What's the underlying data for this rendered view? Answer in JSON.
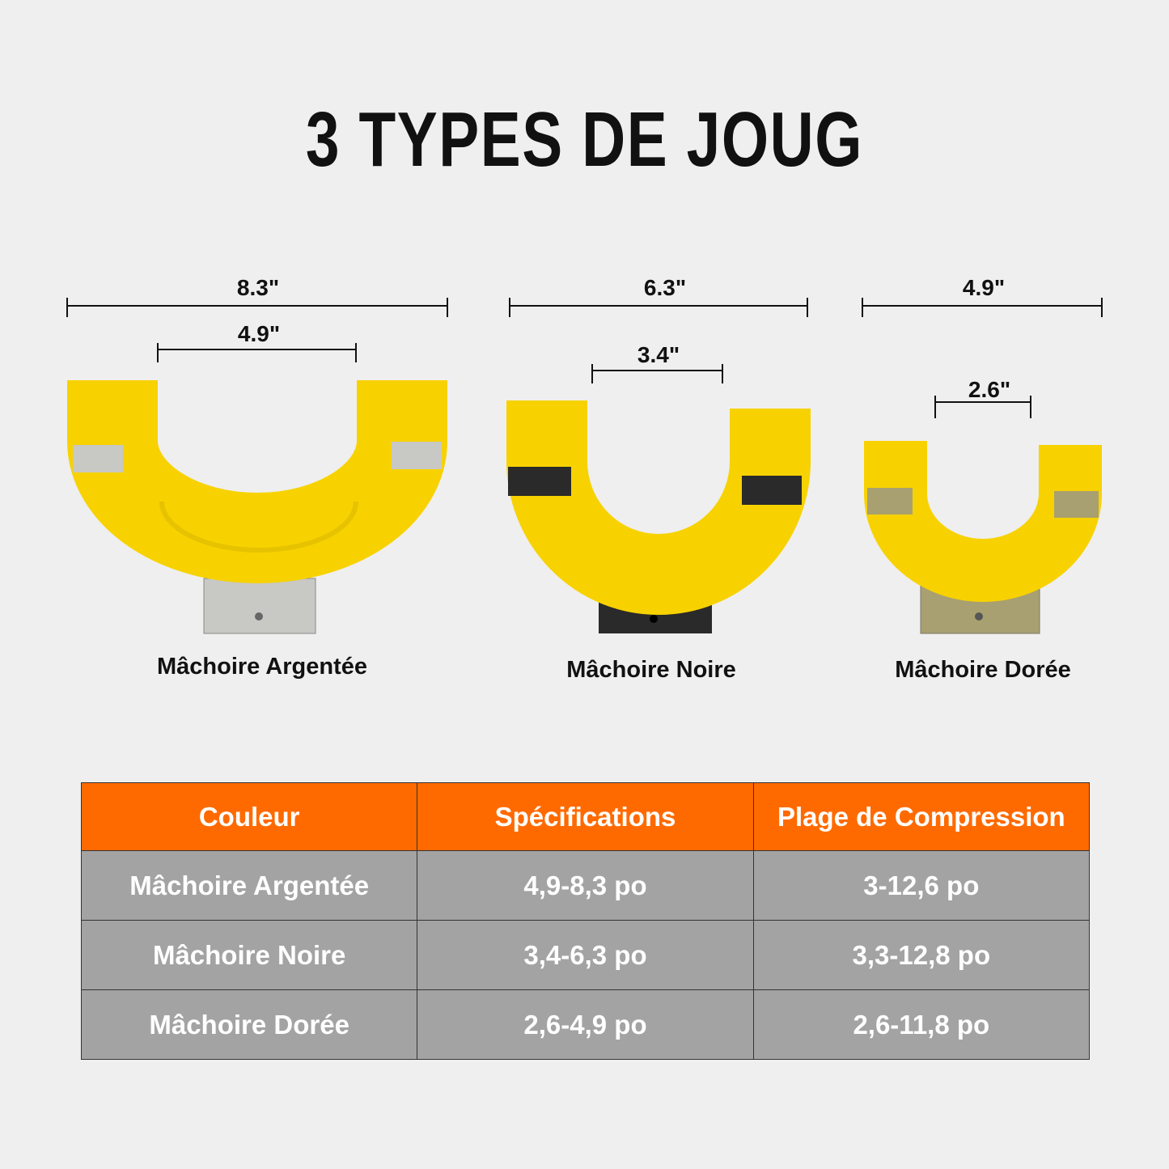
{
  "title": "3 TYPES DE JOUG",
  "jaws": [
    {
      "name": "Mâchoire Argentée",
      "outer": "8.3\"",
      "inner": "4.9\"",
      "insert_color": "#c8c8c4"
    },
    {
      "name": "Mâchoire Noire",
      "outer": "6.3\"",
      "inner": "3.4\"",
      "insert_color": "#2a2a2a"
    },
    {
      "name": "Mâchoire Dorée",
      "outer": "4.9\"",
      "inner": "2.6\"",
      "insert_color": "#a8a070"
    }
  ],
  "colors": {
    "jaw_body": "#f7d200",
    "header": "#ff6a00",
    "row": "#a3a3a3",
    "background": "#efefef"
  },
  "table": {
    "headers": [
      "Couleur",
      "Spécifications",
      "Plage de Compression"
    ],
    "rows": [
      [
        "Mâchoire Argentée",
        "4,9-8,3 po",
        "3-12,6 po"
      ],
      [
        "Mâchoire Noire",
        "3,4-6,3 po",
        "3,3-12,8 po"
      ],
      [
        "Mâchoire Dorée",
        "2,6-4,9 po",
        "2,6-11,8 po"
      ]
    ]
  }
}
